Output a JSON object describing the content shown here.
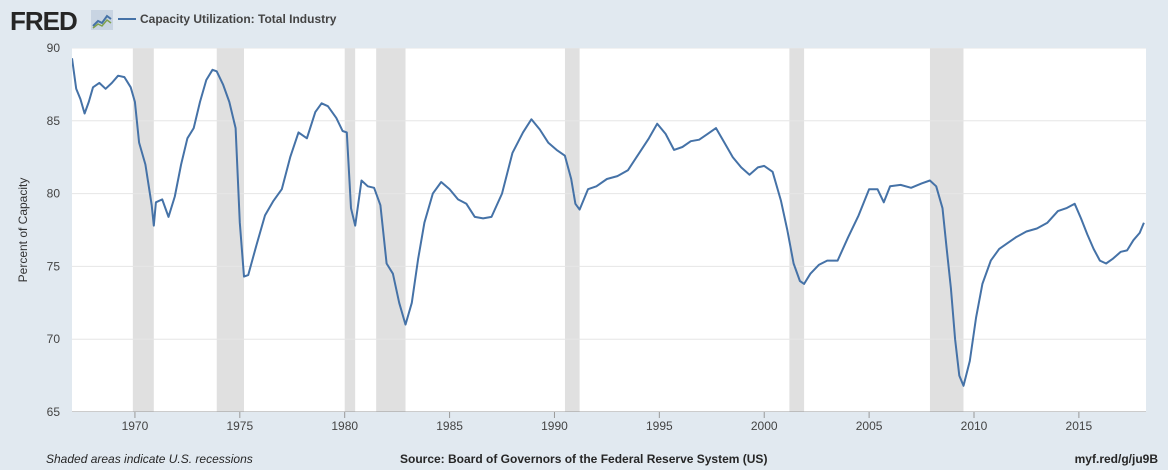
{
  "header": {
    "logo_text": "FRED",
    "logo_icon": "line-chart-icon",
    "legend_label": "Capacity Utilization: Total Industry"
  },
  "footer": {
    "left": "Shaded areas indicate U.S. recessions",
    "center": "Source: Board of Governors of the Federal Reserve System (US)",
    "right": "myf.red/g/ju9B"
  },
  "colors": {
    "line": "#4572a7",
    "recession": "#e0e0e0",
    "background": "#e1e9f0",
    "plot": "#ffffff"
  },
  "chart_data": {
    "type": "line",
    "title": "",
    "xlabel": "",
    "ylabel": "Percent of Capacity",
    "ylim": [
      65,
      90
    ],
    "xlim": [
      1967.0,
      2018.2
    ],
    "yticks": [
      65,
      70,
      75,
      80,
      85,
      90
    ],
    "xticks": [
      1970,
      1975,
      1980,
      1985,
      1990,
      1995,
      2000,
      2005,
      2010,
      2015
    ],
    "grid": true,
    "legend_position": "top-left",
    "recessions": [
      [
        1969.9,
        1970.9
      ],
      [
        1973.9,
        1975.2
      ],
      [
        1980.0,
        1980.5
      ],
      [
        1981.5,
        1982.9
      ],
      [
        1990.5,
        1991.2
      ],
      [
        2001.2,
        2001.9
      ],
      [
        2007.9,
        2009.5
      ]
    ],
    "series": [
      {
        "name": "Capacity Utilization: Total Industry",
        "x": [
          1967.0,
          1967.2,
          1967.4,
          1967.6,
          1967.8,
          1968.0,
          1968.3,
          1968.6,
          1968.9,
          1969.2,
          1969.5,
          1969.8,
          1970.0,
          1970.2,
          1970.5,
          1970.8,
          1970.9,
          1971.0,
          1971.3,
          1971.6,
          1971.9,
          1972.2,
          1972.5,
          1972.8,
          1973.1,
          1973.4,
          1973.7,
          1973.9,
          1974.2,
          1974.5,
          1974.8,
          1975.0,
          1975.2,
          1975.4,
          1975.8,
          1976.2,
          1976.6,
          1977.0,
          1977.4,
          1977.8,
          1978.2,
          1978.6,
          1978.9,
          1979.2,
          1979.6,
          1979.9,
          1980.1,
          1980.3,
          1980.5,
          1980.8,
          1981.1,
          1981.4,
          1981.7,
          1982.0,
          1982.3,
          1982.6,
          1982.9,
          1983.2,
          1983.5,
          1983.8,
          1984.2,
          1984.6,
          1985.0,
          1985.4,
          1985.8,
          1986.2,
          1986.6,
          1987.0,
          1987.5,
          1988.0,
          1988.5,
          1988.9,
          1989.3,
          1989.7,
          1990.1,
          1990.5,
          1990.8,
          1991.0,
          1991.2,
          1991.6,
          1992.0,
          1992.5,
          1993.0,
          1993.5,
          1994.0,
          1994.5,
          1994.9,
          1995.3,
          1995.7,
          1996.1,
          1996.5,
          1996.9,
          1997.3,
          1997.7,
          1998.1,
          1998.5,
          1998.9,
          1999.3,
          1999.7,
          2000.0,
          2000.4,
          2000.8,
          2001.1,
          2001.4,
          2001.7,
          2001.9,
          2002.2,
          2002.6,
          2003.0,
          2003.5,
          2004.0,
          2004.5,
          2005.0,
          2005.4,
          2005.7,
          2006.0,
          2006.5,
          2007.0,
          2007.5,
          2007.9,
          2008.2,
          2008.5,
          2008.7,
          2008.9,
          2009.1,
          2009.3,
          2009.5,
          2009.8,
          2010.1,
          2010.4,
          2010.8,
          2011.2,
          2011.6,
          2012.0,
          2012.5,
          2013.0,
          2013.5,
          2014.0,
          2014.4,
          2014.8,
          2015.1,
          2015.4,
          2015.7,
          2016.0,
          2016.3,
          2016.6,
          2017.0,
          2017.3,
          2017.6,
          2017.9,
          2018.1
        ],
        "values": [
          89.3,
          87.2,
          86.5,
          85.5,
          86.3,
          87.3,
          87.6,
          87.2,
          87.6,
          88.1,
          88.0,
          87.3,
          86.3,
          83.5,
          82.0,
          79.2,
          77.8,
          79.4,
          79.6,
          78.4,
          79.8,
          82.0,
          83.8,
          84.5,
          86.3,
          87.8,
          88.5,
          88.4,
          87.5,
          86.3,
          84.5,
          78.0,
          74.3,
          74.4,
          76.5,
          78.5,
          79.5,
          80.3,
          82.5,
          84.2,
          83.8,
          85.6,
          86.2,
          86.0,
          85.2,
          84.3,
          84.2,
          79.0,
          77.8,
          80.9,
          80.5,
          80.4,
          79.2,
          75.2,
          74.5,
          72.5,
          71.0,
          72.5,
          75.5,
          78.0,
          80.0,
          80.8,
          80.3,
          79.6,
          79.3,
          78.4,
          78.3,
          78.4,
          80.0,
          82.8,
          84.2,
          85.1,
          84.4,
          83.5,
          83.0,
          82.6,
          81.0,
          79.3,
          78.9,
          80.3,
          80.5,
          81.0,
          81.2,
          81.6,
          82.7,
          83.8,
          84.8,
          84.1,
          83.0,
          83.2,
          83.6,
          83.7,
          84.1,
          84.5,
          83.5,
          82.5,
          81.8,
          81.3,
          81.8,
          81.9,
          81.5,
          79.5,
          77.5,
          75.2,
          74.0,
          73.8,
          74.5,
          75.1,
          75.4,
          75.4,
          77.0,
          78.5,
          80.3,
          80.3,
          79.4,
          80.5,
          80.6,
          80.4,
          80.7,
          80.9,
          80.5,
          79.0,
          76.2,
          73.5,
          70.0,
          67.5,
          66.8,
          68.5,
          71.5,
          73.8,
          75.4,
          76.2,
          76.6,
          77.0,
          77.4,
          77.6,
          78.0,
          78.8,
          79.0,
          79.3,
          78.3,
          77.2,
          76.2,
          75.4,
          75.2,
          75.5,
          76.0,
          76.1,
          76.8,
          77.3,
          78.0
        ]
      }
    ]
  }
}
